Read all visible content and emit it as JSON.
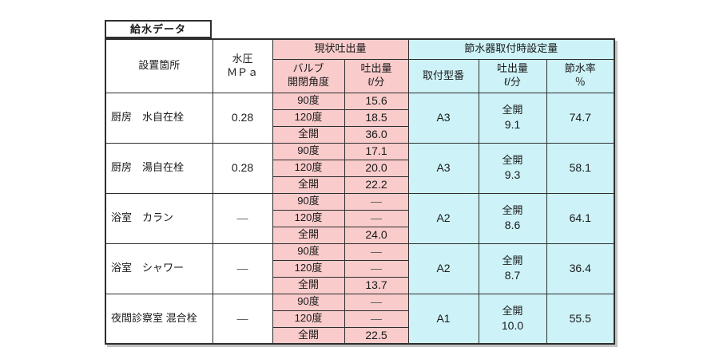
{
  "title": "給水データ",
  "colors": {
    "current_group_bg": "#f9cbcb",
    "saving_group_bg": "#cdf3f8",
    "border": "#2e2e2e"
  },
  "table": {
    "headers": {
      "location": "設置箇所",
      "pressure": "水圧\nＭＰａ",
      "current_group": "現状吐出量",
      "saving_group": "節水器取付時設定量",
      "valve_angle": "バルブ\n開閉角度",
      "flow": "吐出量\nℓ/分",
      "model": "取付型番",
      "setting_flow": "吐出量\nℓ/分",
      "saving_rate": "節水率\n％"
    },
    "rows": [
      {
        "location": "厨房　水自在栓",
        "pressure": "0.28",
        "measurements": [
          {
            "angle": "90度",
            "flow": "15.6"
          },
          {
            "angle": "120度",
            "flow": "18.5"
          },
          {
            "angle": "全開",
            "flow": "36.0"
          }
        ],
        "model": "A3",
        "setting_label": "全開",
        "setting_value": "9.1",
        "saving_rate": "74.7"
      },
      {
        "location": "厨房　湯自在栓",
        "pressure": "0.28",
        "measurements": [
          {
            "angle": "90度",
            "flow": "17.1"
          },
          {
            "angle": "120度",
            "flow": "20.0"
          },
          {
            "angle": "全開",
            "flow": "22.2"
          }
        ],
        "model": "A3",
        "setting_label": "全開",
        "setting_value": "9.3",
        "saving_rate": "58.1"
      },
      {
        "location": "浴室　カラン",
        "pressure": "―",
        "measurements": [
          {
            "angle": "90度",
            "flow": "―"
          },
          {
            "angle": "120度",
            "flow": "―"
          },
          {
            "angle": "全開",
            "flow": "24.0"
          }
        ],
        "model": "A2",
        "setting_label": "全開",
        "setting_value": "8.6",
        "saving_rate": "64.1"
      },
      {
        "location": "浴室　シャワー",
        "pressure": "―",
        "measurements": [
          {
            "angle": "90度",
            "flow": "―"
          },
          {
            "angle": "120度",
            "flow": "―"
          },
          {
            "angle": "全開",
            "flow": "13.7"
          }
        ],
        "model": "A2",
        "setting_label": "全開",
        "setting_value": "8.7",
        "saving_rate": "36.4"
      },
      {
        "location": "夜間診察室 混合栓",
        "pressure": "―",
        "measurements": [
          {
            "angle": "90度",
            "flow": "―"
          },
          {
            "angle": "120度",
            "flow": "―"
          },
          {
            "angle": "全開",
            "flow": "22.5"
          }
        ],
        "model": "A1",
        "setting_label": "全開",
        "setting_value": "10.0",
        "saving_rate": "55.5"
      }
    ]
  }
}
